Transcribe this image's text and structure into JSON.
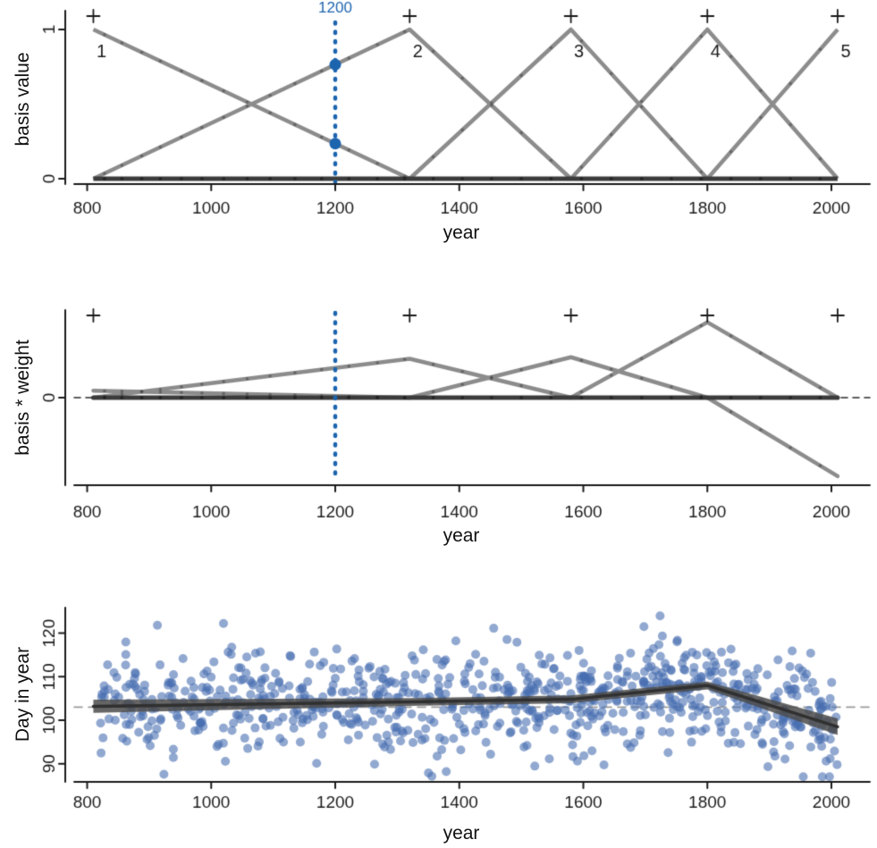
{
  "figure": {
    "bg": "#ffffff"
  },
  "colors": {
    "axis": "#1a1a1a",
    "basis_line": "#8c8c8c",
    "overlap_line": "#3b3b3b",
    "highlight_blue": "#1c64ae",
    "scatter_fill": "rgba(71,110,176,0.60)",
    "trend_band": "rgba(75,75,75,0.85)",
    "trend_line": "#303030",
    "dash_gray": "#9a9a9a",
    "dash_dark": "#2a2a2a",
    "marker_dot": "rgba(30,30,30,0.35)"
  },
  "x_axis": {
    "label": "year",
    "ticks": [
      800,
      1000,
      1200,
      1400,
      1600,
      1800,
      2000
    ]
  },
  "chart_data": [
    {
      "type": "line",
      "name": "basis-functions",
      "ylabel": "basis value",
      "xlabel": "year",
      "y_ticks": [
        0,
        1
      ],
      "ylim": [
        0,
        1.1
      ],
      "knots": [
        810,
        1320,
        1580,
        1800,
        2010
      ],
      "knot_marker": "+",
      "basis_labels": [
        "1",
        "2",
        "3",
        "4",
        "5"
      ],
      "highlight": {
        "x": 1200,
        "label": "1200",
        "basis_values": [
          0.235,
          0.765
        ]
      },
      "marker_years": [
        828,
        856,
        888,
        918,
        952,
        985,
        1020,
        1058,
        1095,
        1135,
        1178,
        1222,
        1268,
        1312,
        1358,
        1405,
        1452,
        1500,
        1548,
        1597,
        1645,
        1694,
        1742,
        1790,
        1838,
        1886,
        1934,
        1982
      ]
    },
    {
      "type": "line",
      "name": "weighted-basis",
      "ylabel": "basis * weight",
      "xlabel": "year",
      "y_ticks": [
        0
      ],
      "weights": [
        0.09,
        0.5,
        0.52,
        0.97,
        -1.01
      ],
      "highlight": {
        "x": 1200
      },
      "zero_dashed_line": true
    },
    {
      "type": "scatter",
      "name": "day-in-year-data-and-fit",
      "ylabel": "Day in year",
      "xlabel": "year",
      "y_ticks": [
        90,
        100,
        110,
        120
      ],
      "ylim": [
        86,
        125
      ],
      "dashed_mean_day": 103,
      "trend": {
        "x": [
          810,
          1320,
          1580,
          1800,
          2010
        ],
        "y": [
          103.2,
          104.2,
          104.8,
          108.0,
          98.5
        ],
        "half_width_days": [
          1.5,
          0.9,
          0.9,
          0.9,
          1.9
        ]
      },
      "points": {
        "n": 820,
        "seed": 17,
        "x_range": [
          810,
          2010
        ],
        "sd_days": 6.2,
        "min_day": 87,
        "max_day": 124
      }
    }
  ]
}
